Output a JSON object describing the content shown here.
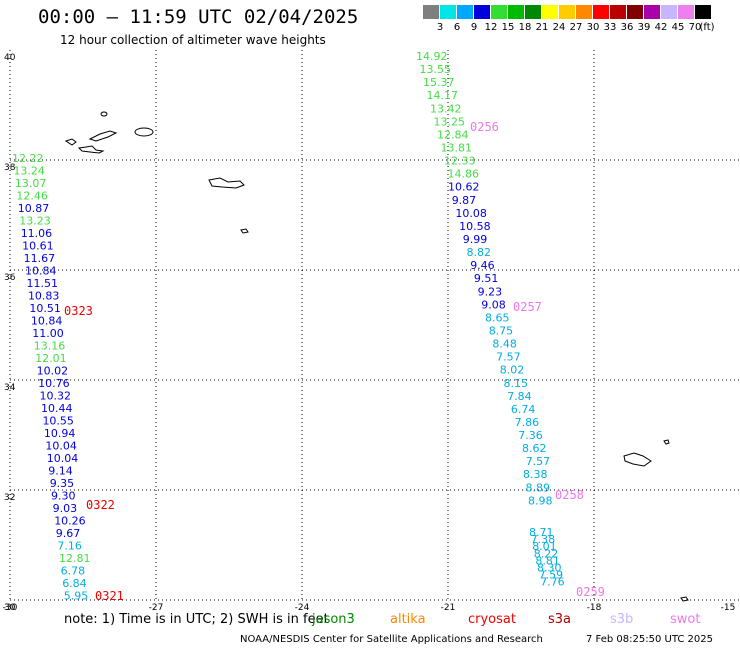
{
  "header": {
    "title": "00:00 – 11:59 UTC 02/04/2025",
    "subtitle": "12 hour collection of altimeter wave heights"
  },
  "scale": {
    "unit": "(ft)",
    "items": [
      {
        "label": "3",
        "color": "#7f7f7f"
      },
      {
        "label": "6",
        "color": "#00e5e5"
      },
      {
        "label": "9",
        "color": "#00a8ff"
      },
      {
        "label": "12",
        "color": "#0000dd"
      },
      {
        "label": "15",
        "color": "#33dd33"
      },
      {
        "label": "18",
        "color": "#00bb00"
      },
      {
        "label": "21",
        "color": "#008800"
      },
      {
        "label": "24",
        "color": "#ffff00"
      },
      {
        "label": "27",
        "color": "#ffcc00"
      },
      {
        "label": "30",
        "color": "#ff8800"
      },
      {
        "label": "33",
        "color": "#ff0000"
      },
      {
        "label": "36",
        "color": "#bb0000"
      },
      {
        "label": "39",
        "color": "#800000"
      },
      {
        "label": "42",
        "color": "#aa00aa"
      },
      {
        "label": "45",
        "color": "#c8b4ff"
      },
      {
        "label": "70",
        "color": "#ee80ee"
      },
      {
        "label": "",
        "color": "#000000"
      }
    ]
  },
  "map": {
    "lon_ticks": [
      "-30",
      "-27",
      "-24",
      "-21",
      "-18",
      "-15"
    ],
    "lat_ticks": [
      "40",
      "38",
      "36",
      "34",
      "32",
      "30"
    ],
    "colors": {
      "blue": "#0000dd",
      "light_green": "#44dd44",
      "cyan": "#00aee0",
      "red": "#ee0000",
      "pink": "#ee77ee"
    },
    "pass_labels": [
      {
        "text": "0323",
        "color": "red"
      },
      {
        "text": "0322",
        "color": "red"
      },
      {
        "text": "0321",
        "color": "red"
      },
      {
        "text": "0256",
        "color": "pink"
      },
      {
        "text": "0257",
        "color": "pink"
      },
      {
        "text": "0258",
        "color": "pink"
      },
      {
        "text": "0259",
        "color": "pink"
      }
    ],
    "tracks": [
      {
        "values": [
          {
            "t": "12.22",
            "c": "light_green"
          },
          {
            "t": "13.24",
            "c": "light_green"
          },
          {
            "t": "13.07",
            "c": "light_green"
          },
          {
            "t": "12.46",
            "c": "light_green"
          },
          {
            "t": "10.87",
            "c": "blue"
          },
          {
            "t": "13.23",
            "c": "light_green"
          },
          {
            "t": "11.06",
            "c": "blue"
          },
          {
            "t": "10.61",
            "c": "blue"
          },
          {
            "t": "11.67",
            "c": "blue"
          },
          {
            "t": "10.84",
            "c": "blue"
          },
          {
            "t": "11.51",
            "c": "blue"
          },
          {
            "t": "10.83",
            "c": "blue"
          },
          {
            "t": "10.51",
            "c": "blue"
          },
          {
            "t": "10.84",
            "c": "blue"
          },
          {
            "t": "11.00",
            "c": "blue"
          },
          {
            "t": "13.16",
            "c": "light_green"
          },
          {
            "t": "12.01",
            "c": "light_green"
          },
          {
            "t": "10.02",
            "c": "blue"
          },
          {
            "t": "10.76",
            "c": "blue"
          },
          {
            "t": "10.32",
            "c": "blue"
          },
          {
            "t": "10.44",
            "c": "blue"
          },
          {
            "t": "10.55",
            "c": "blue"
          },
          {
            "t": "10.94",
            "c": "blue"
          },
          {
            "t": "10.04",
            "c": "blue"
          },
          {
            "t": "10.04",
            "c": "blue"
          },
          {
            "t": "9.14",
            "c": "blue"
          },
          {
            "t": "9.35",
            "c": "blue"
          },
          {
            "t": "9.30",
            "c": "blue"
          },
          {
            "t": "9.03",
            "c": "blue"
          },
          {
            "t": "10.26",
            "c": "blue"
          },
          {
            "t": "9.67",
            "c": "blue"
          },
          {
            "t": "7.16",
            "c": "cyan"
          },
          {
            "t": "12.81",
            "c": "light_green"
          },
          {
            "t": "6.78",
            "c": "cyan"
          },
          {
            "t": "6.84",
            "c": "cyan"
          },
          {
            "t": "5.95",
            "c": "cyan"
          }
        ]
      },
      {
        "values": [
          {
            "t": "14.92",
            "c": "light_green"
          },
          {
            "t": "13.55",
            "c": "light_green"
          },
          {
            "t": "15.37",
            "c": "light_green"
          },
          {
            "t": "14.17",
            "c": "light_green"
          },
          {
            "t": "13.42",
            "c": "light_green"
          },
          {
            "t": "13.25",
            "c": "light_green"
          },
          {
            "t": "12.84",
            "c": "light_green"
          },
          {
            "t": "13.81",
            "c": "light_green"
          },
          {
            "t": "12.33",
            "c": "light_green"
          },
          {
            "t": "14.86",
            "c": "light_green"
          },
          {
            "t": "10.62",
            "c": "blue"
          },
          {
            "t": "9.87",
            "c": "blue"
          },
          {
            "t": "10.08",
            "c": "blue"
          },
          {
            "t": "10.58",
            "c": "blue"
          },
          {
            "t": "9.99",
            "c": "blue"
          },
          {
            "t": "8.82",
            "c": "cyan"
          },
          {
            "t": "9.46",
            "c": "blue"
          },
          {
            "t": "9.51",
            "c": "blue"
          },
          {
            "t": "9.23",
            "c": "blue"
          },
          {
            "t": "9.08",
            "c": "blue"
          },
          {
            "t": "8.65",
            "c": "cyan"
          },
          {
            "t": "8.75",
            "c": "cyan"
          },
          {
            "t": "8.48",
            "c": "cyan"
          },
          {
            "t": "7.57",
            "c": "cyan"
          },
          {
            "t": "8.02",
            "c": "cyan"
          },
          {
            "t": "8.15",
            "c": "cyan"
          },
          {
            "t": "7.84",
            "c": "cyan"
          },
          {
            "t": "6.74",
            "c": "cyan"
          },
          {
            "t": "7.86",
            "c": "cyan"
          },
          {
            "t": "7.36",
            "c": "cyan"
          },
          {
            "t": "8.62",
            "c": "cyan"
          },
          {
            "t": "7.57",
            "c": "cyan"
          },
          {
            "t": "8.38",
            "c": "cyan"
          },
          {
            "t": "8.89",
            "c": "cyan"
          },
          {
            "t": "8.98",
            "c": "cyan"
          },
          {
            "t": "8.71",
            "c": "cyan"
          },
          {
            "t": "7.38",
            "c": "cyan"
          },
          {
            "t": "8.01",
            "c": "cyan"
          },
          {
            "t": "8.22",
            "c": "cyan"
          },
          {
            "t": "8.81",
            "c": "cyan"
          },
          {
            "t": "8.30",
            "c": "cyan"
          },
          {
            "t": "7.59",
            "c": "cyan"
          },
          {
            "t": "7.76",
            "c": "cyan"
          }
        ]
      }
    ]
  },
  "footer": {
    "note": "note: 1) Time is in UTC; 2) SWH is in feet",
    "satellites": [
      {
        "name": "jason3",
        "color": "#008800"
      },
      {
        "name": "altika",
        "color": "#ff8800"
      },
      {
        "name": "cryosat",
        "color": "#ee0000"
      },
      {
        "name": "s3a",
        "color": "#aa0000"
      },
      {
        "name": "s3b",
        "color": "#c8b4ff"
      },
      {
        "name": "swot",
        "color": "#ee77ee"
      }
    ],
    "credit": "NOAA/NESDIS Center for Satellite Applications and Research",
    "generated": "7 Feb 08:25:50 UTC 2025"
  }
}
